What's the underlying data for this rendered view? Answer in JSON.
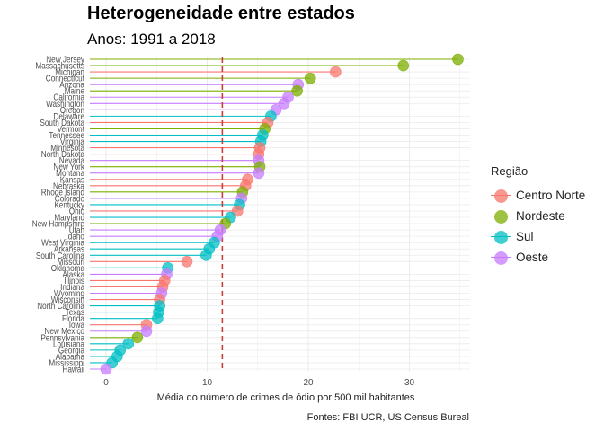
{
  "title": "Heterogeneidade entre estados",
  "subtitle": "Anos: 1991 a 2018",
  "caption": "Fontes: FBI UCR, US Census Bureal",
  "chart_data": {
    "type": "lollipop",
    "xlabel": "Média do número de crimes de ódio por 500 mil habitantes",
    "ylabel": "",
    "xlim": [
      -1,
      35
    ],
    "x_ticks": [
      0,
      10,
      20,
      30
    ],
    "reference_line": 11.5,
    "legend": {
      "title": "Região",
      "position": "right",
      "entries": [
        {
          "name": "Centro Norte",
          "color": "#F8766D"
        },
        {
          "name": "Nordeste",
          "color": "#7CAE00"
        },
        {
          "name": "Sul",
          "color": "#00BFC4"
        },
        {
          "name": "Oeste",
          "color": "#C77CFF"
        }
      ]
    },
    "points": [
      {
        "state": "New Jersey",
        "value": 34.8,
        "region": "Nordeste"
      },
      {
        "state": "Massachusetts",
        "value": 29.4,
        "region": "Nordeste"
      },
      {
        "state": "Michigan",
        "value": 22.7,
        "region": "Centro Norte"
      },
      {
        "state": "Connecticut",
        "value": 20.2,
        "region": "Nordeste"
      },
      {
        "state": "Arizona",
        "value": 19.0,
        "region": "Oeste"
      },
      {
        "state": "Maine",
        "value": 18.9,
        "region": "Nordeste"
      },
      {
        "state": "California",
        "value": 18.0,
        "region": "Oeste"
      },
      {
        "state": "Washington",
        "value": 17.6,
        "region": "Oeste"
      },
      {
        "state": "Oregon",
        "value": 16.8,
        "region": "Oeste"
      },
      {
        "state": "Delaware",
        "value": 16.3,
        "region": "Sul"
      },
      {
        "state": "South Dakota",
        "value": 16.0,
        "region": "Centro Norte"
      },
      {
        "state": "Vermont",
        "value": 15.7,
        "region": "Nordeste"
      },
      {
        "state": "Tennessee",
        "value": 15.5,
        "region": "Sul"
      },
      {
        "state": "Virginia",
        "value": 15.3,
        "region": "Sul"
      },
      {
        "state": "Minnesota",
        "value": 15.2,
        "region": "Centro Norte"
      },
      {
        "state": "North Dakota",
        "value": 15.1,
        "region": "Centro Norte"
      },
      {
        "state": "Nevada",
        "value": 15.1,
        "region": "Oeste"
      },
      {
        "state": "New York",
        "value": 15.2,
        "region": "Nordeste"
      },
      {
        "state": "Montana",
        "value": 15.1,
        "region": "Oeste"
      },
      {
        "state": "Kansas",
        "value": 14.0,
        "region": "Centro Norte"
      },
      {
        "state": "Nebraska",
        "value": 13.8,
        "region": "Centro Norte"
      },
      {
        "state": "Rhode Island",
        "value": 13.5,
        "region": "Nordeste"
      },
      {
        "state": "Colorado",
        "value": 13.4,
        "region": "Oeste"
      },
      {
        "state": "Kentucky",
        "value": 13.2,
        "region": "Sul"
      },
      {
        "state": "Ohio",
        "value": 13.0,
        "region": "Centro Norte"
      },
      {
        "state": "Maryland",
        "value": 12.3,
        "region": "Sul"
      },
      {
        "state": "New Hampshire",
        "value": 11.8,
        "region": "Nordeste"
      },
      {
        "state": "Utah",
        "value": 11.3,
        "region": "Oeste"
      },
      {
        "state": "Idaho",
        "value": 11.0,
        "region": "Oeste"
      },
      {
        "state": "West Virginia",
        "value": 10.7,
        "region": "Sul"
      },
      {
        "state": "Arkansas",
        "value": 10.2,
        "region": "Sul"
      },
      {
        "state": "South Carolina",
        "value": 9.9,
        "region": "Sul"
      },
      {
        "state": "Missouri",
        "value": 8.0,
        "region": "Centro Norte"
      },
      {
        "state": "Oklahoma",
        "value": 6.1,
        "region": "Sul"
      },
      {
        "state": "Alaska",
        "value": 6.0,
        "region": "Oeste"
      },
      {
        "state": "Illinois",
        "value": 5.8,
        "region": "Centro Norte"
      },
      {
        "state": "Indiana",
        "value": 5.6,
        "region": "Centro Norte"
      },
      {
        "state": "Wyoming",
        "value": 5.5,
        "region": "Oeste"
      },
      {
        "state": "Wisconsin",
        "value": 5.3,
        "region": "Centro Norte"
      },
      {
        "state": "North Carolina",
        "value": 5.3,
        "region": "Sul"
      },
      {
        "state": "Texas",
        "value": 5.2,
        "region": "Sul"
      },
      {
        "state": "Florida",
        "value": 5.1,
        "region": "Sul"
      },
      {
        "state": "Iowa",
        "value": 4.0,
        "region": "Centro Norte"
      },
      {
        "state": "New Mexico",
        "value": 4.0,
        "region": "Oeste"
      },
      {
        "state": "Pennsylvania",
        "value": 3.1,
        "region": "Nordeste"
      },
      {
        "state": "Louisiana",
        "value": 2.2,
        "region": "Sul"
      },
      {
        "state": "Georgia",
        "value": 1.4,
        "region": "Sul"
      },
      {
        "state": "Alabama",
        "value": 1.1,
        "region": "Sul"
      },
      {
        "state": "Mississippi",
        "value": 0.6,
        "region": "Sul"
      },
      {
        "state": "Hawaii",
        "value": 0.0,
        "region": "Oeste"
      }
    ]
  }
}
